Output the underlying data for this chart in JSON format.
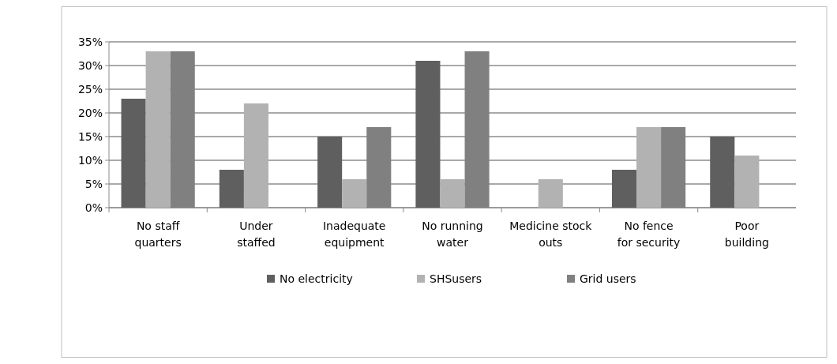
{
  "chart_data": {
    "type": "bar",
    "categories": [
      "No staff quarters",
      "Under staffed",
      "Inadequate equipment",
      "No running water",
      "Medicine stock outs",
      "No fence for security",
      "Poor building"
    ],
    "series": [
      {
        "name": "No electricity",
        "color": "#5f5f5f",
        "values": [
          23,
          8,
          15,
          31,
          0,
          8,
          15
        ]
      },
      {
        "name": "SHSusers",
        "color": "#b2b2b2",
        "values": [
          33,
          22,
          6,
          6,
          6,
          17,
          11
        ]
      },
      {
        "name": "Grid users",
        "color": "#808080",
        "values": [
          33,
          0,
          17,
          33,
          0,
          17,
          0
        ]
      }
    ],
    "ylim": [
      0,
      35
    ],
    "yticks": [
      {
        "value": 0,
        "label": "0%"
      },
      {
        "value": 5,
        "label": "5%"
      },
      {
        "value": 10,
        "label": "10%"
      },
      {
        "value": 15,
        "label": "15%"
      },
      {
        "value": 20,
        "label": "20%"
      },
      {
        "value": 25,
        "label": "25%"
      },
      {
        "value": 30,
        "label": "30%"
      },
      {
        "value": 35,
        "label": "35%"
      }
    ],
    "grid": "y",
    "legend": "bottom"
  }
}
